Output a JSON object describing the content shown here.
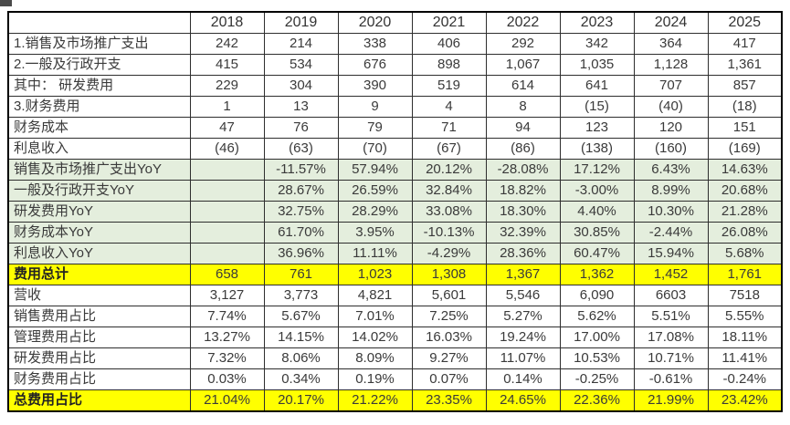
{
  "artifact": {
    "present": true
  },
  "colors": {
    "green_row_bg": "#e4eedd",
    "yellow_row_bg": "#ffff00",
    "negative_red": "#fb1d0e",
    "text": "#3a3a3a",
    "border": "#000000"
  },
  "table": {
    "columns": [
      "",
      "2018",
      "2019",
      "2020",
      "2021",
      "2022",
      "2023",
      "2024",
      "2025"
    ],
    "rows": [
      {
        "label": "1.销售及市场推广支出",
        "style": "white",
        "values": [
          "242",
          "214",
          "338",
          "406",
          "292",
          "342",
          "364",
          "417"
        ]
      },
      {
        "label": "2.一般及行政开支",
        "style": "white",
        "values": [
          "415",
          "534",
          "676",
          "898",
          "1,067",
          "1,035",
          "1,128",
          "1,361"
        ]
      },
      {
        "label": "其中： 研发费用",
        "style": "white",
        "values": [
          "229",
          "304",
          "390",
          "519",
          "614",
          "641",
          "707",
          "857"
        ]
      },
      {
        "label": "3.财务费用",
        "style": "white",
        "values": [
          "1",
          "13",
          "9",
          "4",
          "8",
          "(15)",
          "(40)",
          "(18)"
        ]
      },
      {
        "label": "财务成本",
        "style": "white",
        "values": [
          "47",
          "76",
          "79",
          "71",
          "94",
          "123",
          "120",
          "151"
        ]
      },
      {
        "label": "利息收入",
        "style": "white",
        "values": [
          "(46)",
          "(63)",
          "(70)",
          "(67)",
          "(86)",
          "(138)",
          "(160)",
          "(169)"
        ]
      },
      {
        "label": "销售及市场推广支出YoY",
        "style": "green",
        "values": [
          "",
          "-11.57%",
          "57.94%",
          "20.12%",
          "-28.08%",
          "17.12%",
          "6.43%",
          "14.63%"
        ]
      },
      {
        "label": "一般及行政开支YoY",
        "style": "green",
        "values": [
          "",
          "28.67%",
          "26.59%",
          "32.84%",
          "18.82%",
          "-3.00%",
          "8.99%",
          "20.68%"
        ]
      },
      {
        "label": "研发费用YoY",
        "style": "green",
        "values": [
          "",
          "32.75%",
          "28.29%",
          "33.08%",
          "18.30%",
          "4.40%",
          "10.30%",
          "21.28%"
        ]
      },
      {
        "label": "财务成本YoY",
        "style": "green",
        "values": [
          "",
          "61.70%",
          "3.95%",
          "-10.13%",
          "32.39%",
          "30.85%",
          "-2.44%",
          "26.08%"
        ]
      },
      {
        "label": "利息收入YoY",
        "style": "green",
        "values": [
          "",
          "36.96%",
          "11.11%",
          "-4.29%",
          "28.36%",
          "60.47%",
          "15.94%",
          "5.68%"
        ]
      },
      {
        "label": "费用总计",
        "style": "yellow",
        "values": [
          "658",
          "761",
          "1,023",
          "1,308",
          "1,367",
          "1,362",
          "1,452",
          "1,761"
        ]
      },
      {
        "label": "营收",
        "style": "white",
        "values": [
          "3,127",
          "3,773",
          "4,821",
          "5,601",
          "5,546",
          "6,090",
          "6603",
          "7518"
        ]
      },
      {
        "label": "销售费用占比",
        "style": "white",
        "values": [
          "7.74%",
          "5.67%",
          "7.01%",
          "7.25%",
          "5.27%",
          "5.62%",
          "5.51%",
          "5.55%"
        ]
      },
      {
        "label": "管理费用占比",
        "style": "white",
        "values": [
          "13.27%",
          "14.15%",
          "14.02%",
          "16.03%",
          "19.24%",
          "17.00%",
          "17.08%",
          "18.11%"
        ]
      },
      {
        "label": "研发费用占比",
        "style": "white",
        "values": [
          "7.32%",
          "8.06%",
          "8.09%",
          "9.27%",
          "11.07%",
          "10.53%",
          "10.71%",
          "11.41%"
        ]
      },
      {
        "label": "财务费用占比",
        "style": "white",
        "values": [
          "0.03%",
          "0.34%",
          "0.19%",
          "0.07%",
          "0.14%",
          "-0.25%",
          "-0.61%",
          "-0.24%"
        ]
      },
      {
        "label": "总费用占比",
        "style": "yellow",
        "values": [
          "21.04%",
          "20.17%",
          "21.22%",
          "23.35%",
          "24.65%",
          "22.36%",
          "21.99%",
          "23.42%"
        ]
      }
    ],
    "layout": {
      "label_col_width": 199,
      "year_col_width": 81
    }
  }
}
